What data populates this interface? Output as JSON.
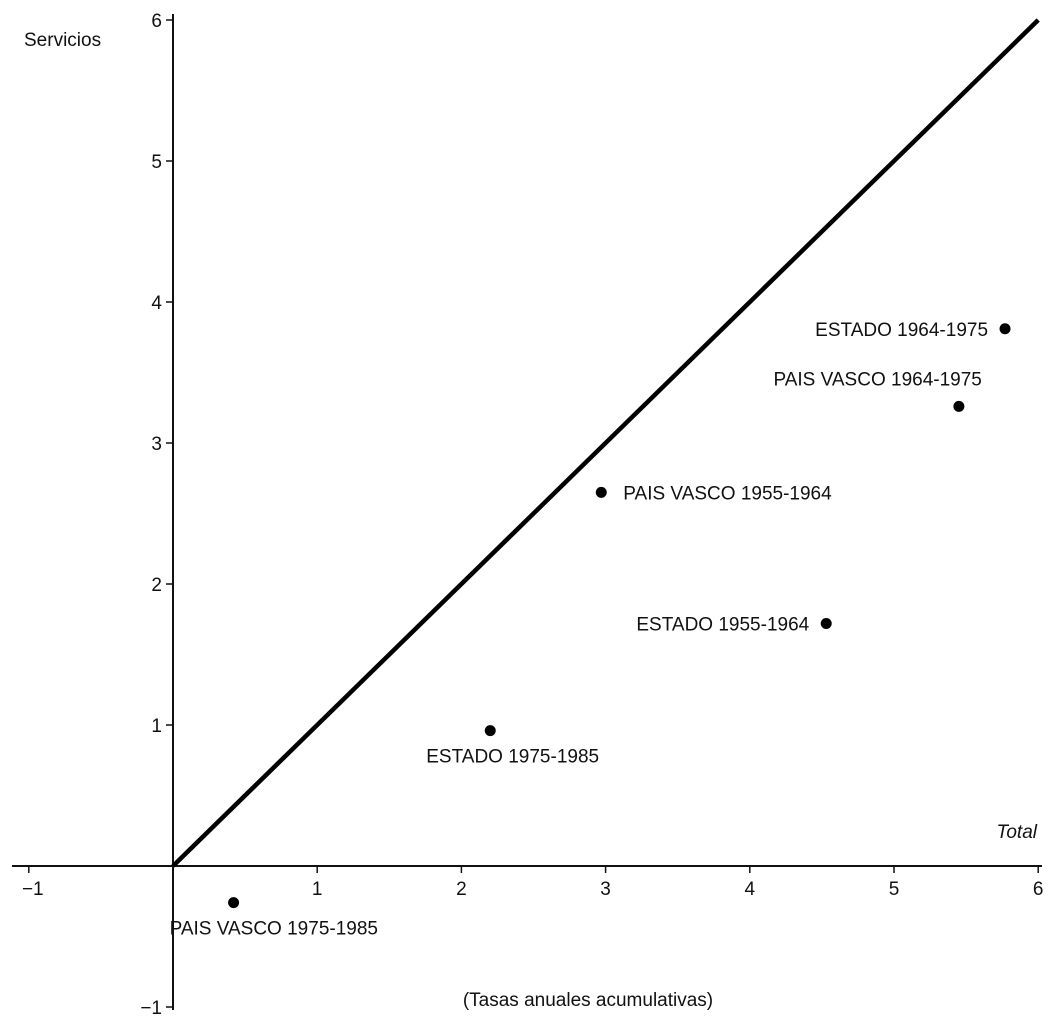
{
  "chart_data": {
    "type": "scatter",
    "ylabel": "Servicios",
    "xlabel": "Total",
    "note": "(Tasas anuales acumulativas)",
    "xlim": [
      -1,
      6
    ],
    "ylim": [
      -1,
      6
    ],
    "x_ticks": [
      {
        "value": -1,
        "label": "−1"
      },
      {
        "value": 1,
        "label": "1"
      },
      {
        "value": 2,
        "label": "2"
      },
      {
        "value": 3,
        "label": "3"
      },
      {
        "value": 4,
        "label": "4"
      },
      {
        "value": 5,
        "label": "5"
      },
      {
        "value": 6,
        "label": "6"
      }
    ],
    "y_ticks": [
      {
        "value": -1,
        "label": "−1"
      },
      {
        "value": 1,
        "label": "1"
      },
      {
        "value": 2,
        "label": "2"
      },
      {
        "value": 3,
        "label": "3"
      },
      {
        "value": 4,
        "label": "4"
      },
      {
        "value": 5,
        "label": "5"
      },
      {
        "value": 6,
        "label": "6"
      }
    ],
    "reference_line": {
      "from": [
        0,
        0
      ],
      "to": [
        6,
        6
      ]
    },
    "grid": false,
    "points": [
      {
        "label": "ESTADO 1964-1975",
        "x": 5.77,
        "y": 3.81,
        "label_position": "left"
      },
      {
        "label": "PAIS VASCO 1964-1975",
        "x": 5.45,
        "y": 3.26,
        "label_position": "above"
      },
      {
        "label": "PAIS VASCO 1955-1964",
        "x": 2.97,
        "y": 2.65,
        "label_position": "right"
      },
      {
        "label": "ESTADO 1955-1964",
        "x": 4.53,
        "y": 1.72,
        "label_position": "left"
      },
      {
        "label": "ESTADO 1975-1985",
        "x": 2.2,
        "y": 0.96,
        "label_position": "below"
      },
      {
        "label": "PAIS VASCO 1975-1985",
        "x": 0.42,
        "y": -0.26,
        "label_position": "below"
      }
    ]
  }
}
